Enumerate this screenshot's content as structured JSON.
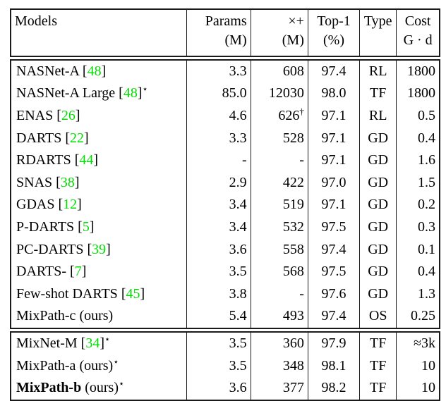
{
  "colors": {
    "citation_green": "#00dd00",
    "text": "#000000",
    "border": "#1a1a1a",
    "background": "#ffffff"
  },
  "symbols": {
    "star": "⋆",
    "dagger": "†"
  },
  "header": {
    "columns": [
      {
        "id": "models",
        "line1": "Models",
        "line2": ""
      },
      {
        "id": "params",
        "line1": "Params",
        "line2": "(M)"
      },
      {
        "id": "flops",
        "line1": "×+",
        "line2": "(M)"
      },
      {
        "id": "top1",
        "line1": "Top-1",
        "line2": "(%)"
      },
      {
        "id": "type",
        "line1": "Type",
        "line2": ""
      },
      {
        "id": "cost",
        "line1": "Cost",
        "line2": "G · d"
      }
    ]
  },
  "main_rows": [
    {
      "name": "NASNet-A",
      "cite": "48",
      "suffix": "",
      "star": false,
      "bold": false,
      "params": "3.3",
      "flops": "608",
      "flops_dagger": false,
      "top1": "97.4",
      "type": "RL",
      "cost": "1800"
    },
    {
      "name": "NASNet-A Large",
      "cite": "48",
      "suffix": "",
      "star": true,
      "bold": false,
      "params": "85.0",
      "flops": "12030",
      "flops_dagger": false,
      "top1": "98.0",
      "type": "TF",
      "cost": "1800"
    },
    {
      "name": "ENAS",
      "cite": "26",
      "suffix": "",
      "star": false,
      "bold": false,
      "params": "4.6",
      "flops": "626",
      "flops_dagger": true,
      "top1": "97.1",
      "type": "RL",
      "cost": "0.5"
    },
    {
      "name": "DARTS",
      "cite": "22",
      "suffix": "",
      "star": false,
      "bold": false,
      "params": "3.3",
      "flops": "528",
      "flops_dagger": false,
      "top1": "97.1",
      "type": "GD",
      "cost": "0.4"
    },
    {
      "name": "RDARTS",
      "cite": "44",
      "suffix": "",
      "star": false,
      "bold": false,
      "params": "-",
      "flops": "-",
      "flops_dagger": false,
      "top1": "97.1",
      "type": "GD",
      "cost": "1.6"
    },
    {
      "name": "SNAS",
      "cite": "38",
      "suffix": "",
      "star": false,
      "bold": false,
      "params": "2.9",
      "flops": "422",
      "flops_dagger": false,
      "top1": "97.0",
      "type": "GD",
      "cost": "1.5"
    },
    {
      "name": "GDAS",
      "cite": "12",
      "suffix": "",
      "star": false,
      "bold": false,
      "params": "3.4",
      "flops": "519",
      "flops_dagger": false,
      "top1": "97.1",
      "type": "GD",
      "cost": "0.2"
    },
    {
      "name": "P-DARTS",
      "cite": "5",
      "suffix": "",
      "star": false,
      "bold": false,
      "params": "3.4",
      "flops": "532",
      "flops_dagger": false,
      "top1": "97.5",
      "type": "GD",
      "cost": "0.3"
    },
    {
      "name": "PC-DARTS",
      "cite": "39",
      "suffix": "",
      "star": false,
      "bold": false,
      "params": "3.6",
      "flops": "558",
      "flops_dagger": false,
      "top1": "97.4",
      "type": "GD",
      "cost": "0.1"
    },
    {
      "name": "DARTS-",
      "cite": "7",
      "suffix": "",
      "star": false,
      "bold": false,
      "params": "3.5",
      "flops": "568",
      "flops_dagger": false,
      "top1": "97.5",
      "type": "GD",
      "cost": "0.4"
    },
    {
      "name": "Few-shot DARTS",
      "cite": "45",
      "suffix": "",
      "star": false,
      "bold": false,
      "params": "3.8",
      "flops": "-",
      "flops_dagger": false,
      "top1": "97.6",
      "type": "GD",
      "cost": "1.3"
    },
    {
      "name": "MixPath-c",
      "cite": "",
      "suffix": "(ours)",
      "star": false,
      "bold": false,
      "params": "5.4",
      "flops": "493",
      "flops_dagger": false,
      "top1": "97.4",
      "type": "OS",
      "cost": "0.25"
    }
  ],
  "bottom_rows": [
    {
      "name": "MixNet-M",
      "cite": "34",
      "suffix": "",
      "star": true,
      "bold": false,
      "params": "3.5",
      "flops": "360",
      "flops_dagger": false,
      "top1": "97.9",
      "type": "TF",
      "cost": "≈3k"
    },
    {
      "name": "MixPath-a",
      "cite": "",
      "suffix": "(ours)",
      "star": true,
      "bold": false,
      "params": "3.5",
      "flops": "348",
      "flops_dagger": false,
      "top1": "98.1",
      "type": "TF",
      "cost": "10"
    },
    {
      "name": "MixPath-b",
      "cite": "",
      "suffix": "(ours)",
      "star": true,
      "bold": true,
      "params": "3.6",
      "flops": "377",
      "flops_dagger": false,
      "top1": "98.2",
      "type": "TF",
      "cost": "10"
    }
  ]
}
